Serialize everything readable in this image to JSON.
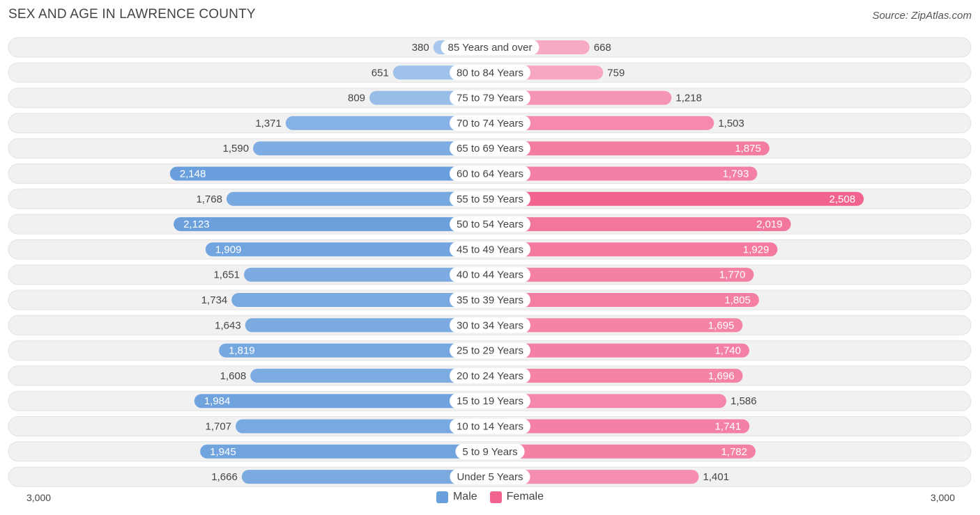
{
  "chart_data": {
    "type": "bar",
    "orientation": "horizontal-diverging",
    "title": "SEX AND AGE IN LAWRENCE COUNTY",
    "source": "Source: ZipAtlas.com",
    "categories": [
      "85 Years and over",
      "80 to 84 Years",
      "75 to 79 Years",
      "70 to 74 Years",
      "65 to 69 Years",
      "60 to 64 Years",
      "55 to 59 Years",
      "50 to 54 Years",
      "45 to 49 Years",
      "40 to 44 Years",
      "35 to 39 Years",
      "30 to 34 Years",
      "25 to 29 Years",
      "20 to 24 Years",
      "15 to 19 Years",
      "10 to 14 Years",
      "5 to 9 Years",
      "Under 5 Years"
    ],
    "series": [
      {
        "name": "Male",
        "values": [
          380,
          651,
          809,
          1371,
          1590,
          2148,
          1768,
          2123,
          1909,
          1651,
          1734,
          1643,
          1819,
          1608,
          1984,
          1707,
          1945,
          1666
        ],
        "labels": [
          "380",
          "651",
          "809",
          "1,371",
          "1,590",
          "2,148",
          "1,768",
          "2,123",
          "1,909",
          "1,651",
          "1,734",
          "1,643",
          "1,819",
          "1,608",
          "1,984",
          "1,707",
          "1,945",
          "1,666"
        ]
      },
      {
        "name": "Female",
        "values": [
          668,
          759,
          1218,
          1503,
          1875,
          1793,
          2508,
          2019,
          1929,
          1770,
          1805,
          1695,
          1740,
          1696,
          1586,
          1741,
          1782,
          1401
        ],
        "labels": [
          "668",
          "759",
          "1,218",
          "1,503",
          "1,875",
          "1,793",
          "2,508",
          "2,019",
          "1,929",
          "1,770",
          "1,805",
          "1,695",
          "1,740",
          "1,696",
          "1,586",
          "1,741",
          "1,782",
          "1,401"
        ]
      }
    ],
    "xlim": [
      0,
      3000
    ],
    "axis_labels": {
      "left": "3,000",
      "right": "3,000"
    },
    "legend": {
      "position": "bottom-center"
    },
    "colors": {
      "male_light": "#a7c8ec",
      "male_dark": "#6a9fdd",
      "female_light": "#f7aac4",
      "female_dark": "#f2648f",
      "row_bg": "#f1f1f1"
    },
    "grid": false
  }
}
